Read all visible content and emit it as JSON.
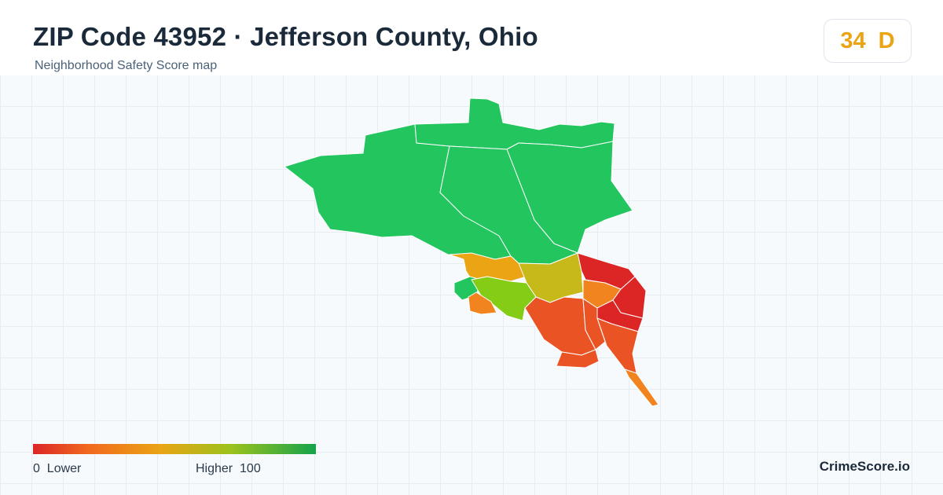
{
  "header": {
    "title": "ZIP Code 43952 · Jefferson County, Ohio",
    "subtitle": "Neighborhood Safety Score map"
  },
  "score": {
    "value": "34",
    "grade": "D",
    "color": "#eaa414"
  },
  "legend": {
    "min_value": "0",
    "min_label": "Lower",
    "max_label": "Higher",
    "max_value": "100",
    "colors": [
      "#dc2626",
      "#f16a1f",
      "#eaa414",
      "#9bc21d",
      "#16a34a"
    ]
  },
  "map": {
    "region_colors": {
      "high_safety": "#22c55e",
      "mid_high": "#84cc16",
      "mid": "#c8b91a",
      "mid_low": "#eaa414",
      "low": "#f1841f",
      "lower": "#ea5424",
      "lowest": "#dc2626"
    }
  },
  "brand": "CrimeScore.io"
}
